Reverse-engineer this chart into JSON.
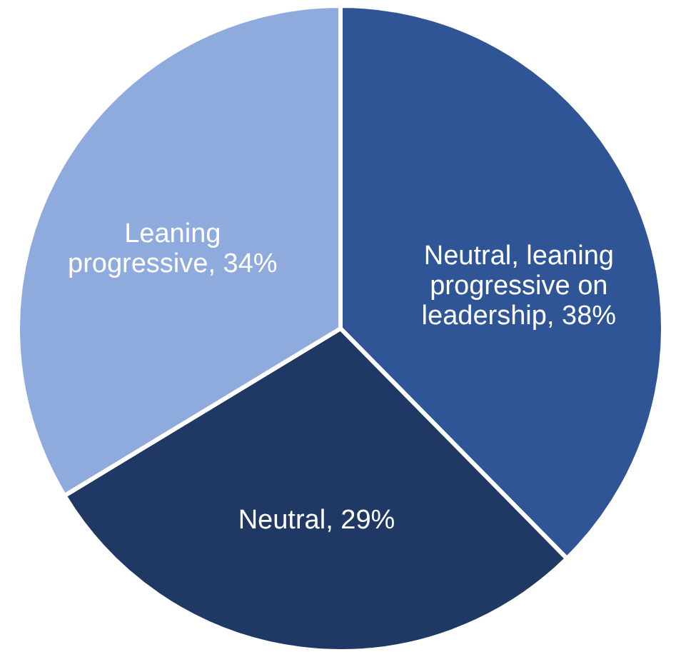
{
  "chart_data": {
    "type": "pie",
    "categories": [
      "Neutral, leaning progressive on leadership",
      "Neutral",
      "Leaning progressive"
    ],
    "values": [
      38,
      29,
      34
    ],
    "value_labels": [
      "38%",
      "29%",
      "34%"
    ],
    "colors": [
      "#2f5597",
      "#203864",
      "#8faadc"
    ]
  }
}
